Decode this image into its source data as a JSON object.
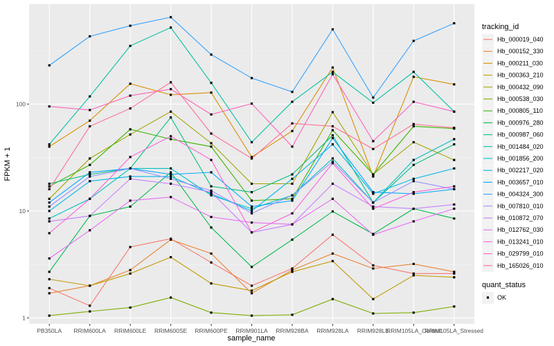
{
  "chart_data": {
    "type": "line",
    "xlabel": "sample_name",
    "ylabel": "FPKM + 1",
    "yscale": "log10",
    "ylim": [
      0.88,
      860
    ],
    "grid": true,
    "yticks": [
      1,
      10,
      100
    ],
    "ytick_labels": [
      "1",
      "10",
      "100"
    ],
    "categories": [
      "PB350LA",
      "RRIM600LA",
      "RRIM600LE",
      "RRIM600SE",
      "RRIM600PE",
      "RRIM901LA",
      "RRIM928BA",
      "RRIM928LA",
      "RRIM928LE",
      "RRIM105LA_Control",
      "RRIM105LA_Stressed"
    ],
    "legend_title": "tracking_id",
    "legend_position": "right",
    "series": [
      {
        "name": "Hb_000019_040",
        "color": "#F8766D",
        "values": [
          1.9,
          1.3,
          4.6,
          5.5,
          3.3,
          2.0,
          2.9,
          6.0,
          3.1,
          2.6,
          2.6
        ]
      },
      {
        "name": "Hb_000152_330",
        "color": "#EA8331",
        "values": [
          1.7,
          2.0,
          2.8,
          5.4,
          4.0,
          1.7,
          2.8,
          4.0,
          2.9,
          3.2,
          2.7
        ]
      },
      {
        "name": "Hb_000211_030",
        "color": "#D89000",
        "values": [
          40,
          70,
          155,
          122,
          128,
          32,
          56,
          220,
          21,
          180,
          153
        ]
      },
      {
        "name": "Hb_000363_210",
        "color": "#C09B00",
        "values": [
          2.3,
          2.0,
          2.6,
          3.7,
          2.1,
          1.8,
          2.7,
          3.4,
          1.5,
          2.5,
          2.4
        ]
      },
      {
        "name": "Hb_000432_090",
        "color": "#A3A500",
        "values": [
          13,
          31,
          52,
          85,
          43,
          18,
          18,
          84,
          22,
          44,
          30
        ]
      },
      {
        "name": "Hb_000538_030",
        "color": "#7CAE00",
        "values": [
          1.05,
          1.15,
          1.25,
          1.55,
          1.12,
          1.05,
          1.07,
          1.5,
          1.1,
          1.12,
          1.28
        ]
      },
      {
        "name": "Hb_000805_110",
        "color": "#39B600",
        "values": [
          17,
          27,
          58,
          47,
          40,
          12.5,
          13,
          57,
          22,
          62,
          59
        ]
      },
      {
        "name": "Hb_000976_280",
        "color": "#00BB4E",
        "values": [
          2.7,
          9.0,
          11,
          23,
          7.0,
          3.0,
          5.4,
          9.9,
          6.1,
          10.5,
          8.5
        ]
      },
      {
        "name": "Hb_000987_060",
        "color": "#00BF7D",
        "values": [
          18,
          22,
          25,
          75,
          17,
          15,
          22,
          51,
          12,
          27,
          42
        ]
      },
      {
        "name": "Hb_001484_020",
        "color": "#00C1A3",
        "values": [
          42,
          118,
          350,
          520,
          158,
          44,
          105,
          200,
          103,
          200,
          85
        ]
      },
      {
        "name": "Hb_001856_200",
        "color": "#00BFC4",
        "values": [
          8.5,
          13,
          25,
          25,
          14,
          10.5,
          14,
          31,
          12,
          30,
          47
        ]
      },
      {
        "name": "Hb_002217_020",
        "color": "#00B8E7",
        "values": [
          10,
          19,
          21,
          21,
          14.5,
          10,
          20,
          42,
          14.5,
          20,
          25
        ]
      },
      {
        "name": "Hb_003657_010",
        "color": "#00A9FF",
        "values": [
          12,
          23,
          25,
          22,
          23,
          11,
          12.5,
          48,
          15,
          14.5,
          16
        ]
      },
      {
        "name": "Hb_004324_300",
        "color": "#35A2FF",
        "values": [
          230,
          430,
          540,
          650,
          290,
          175,
          130,
          500,
          115,
          390,
          570
        ]
      },
      {
        "name": "Hb_007810_010",
        "color": "#9590FF",
        "values": [
          11,
          21,
          25,
          20,
          15.5,
          9.5,
          14,
          29,
          12,
          19,
          16
        ]
      },
      {
        "name": "Hb_010872_070",
        "color": "#C77CFF",
        "values": [
          8.0,
          9.0,
          20,
          18,
          15,
          6.3,
          7.5,
          18,
          11,
          10.5,
          11.5
        ]
      },
      {
        "name": "Hb_012762_030",
        "color": "#E76BF3",
        "values": [
          3.6,
          6.6,
          12.5,
          13.5,
          8.8,
          7.8,
          7.5,
          13,
          6.0,
          8.0,
          10.5
        ]
      },
      {
        "name": "Hb_013241_010",
        "color": "#FA62DB",
        "values": [
          6.2,
          13,
          32,
          50,
          30,
          6.3,
          9.5,
          28,
          10.5,
          15,
          17
        ]
      },
      {
        "name": "Hb_029799_010",
        "color": "#FF62BC",
        "values": [
          95,
          88,
          120,
          138,
          80,
          101,
          40,
          190,
          45,
          105,
          85
        ]
      },
      {
        "name": "Hb_165026_010",
        "color": "#FF6C91",
        "values": [
          16,
          62,
          91,
          160,
          53,
          31,
          66,
          62,
          38,
          65,
          60
        ]
      }
    ],
    "shape_legend_title": "quant_status",
    "shape_legend_items": [
      "OK"
    ]
  }
}
